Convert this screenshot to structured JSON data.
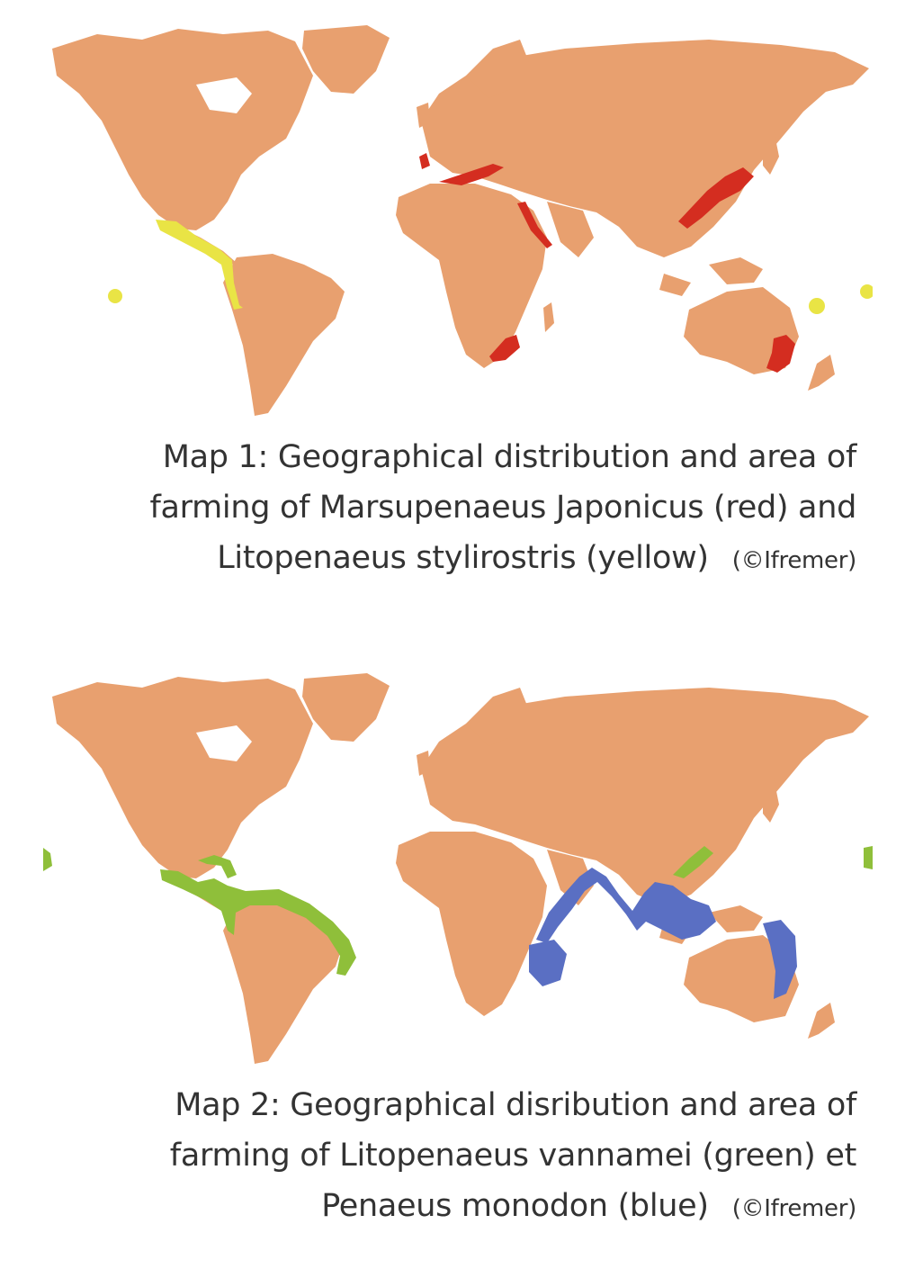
{
  "maps": [
    {
      "caption_lines": [
        "Map 1: Geographical distribution and area of",
        "farming of Marsupenaeus Japonicus (red) and",
        "Litopenaeus stylirostris (yellow)"
      ],
      "credit": "(©Ifremer)",
      "colors": {
        "land": "#e8a06f",
        "red": "#d42d20",
        "yellow": "#e9e445"
      }
    },
    {
      "caption_lines": [
        "Map 2: Geographical disribution and area of",
        "farming of Litopenaeus vannamei (green) et",
        "Penaeus monodon (blue)"
      ],
      "credit": "(©Ifremer)",
      "colors": {
        "land": "#e8a06f",
        "green": "#8fbf3a",
        "blue": "#5a6fc3"
      }
    }
  ]
}
